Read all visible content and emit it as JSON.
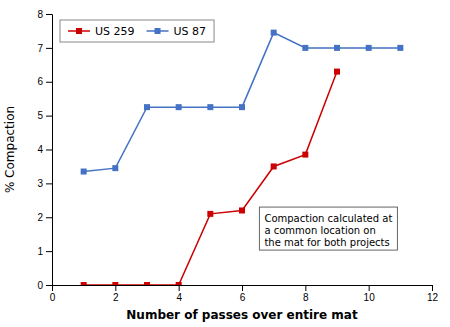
{
  "chart_data": {
    "type": "line",
    "xlabel": "Number of passes over entire mat",
    "ylabel": "% Compaction",
    "series": [
      {
        "name": "US 259",
        "color": "#cc0000",
        "marker": "square",
        "x": [
          1,
          2,
          3,
          4,
          5,
          6,
          7,
          8,
          9
        ],
        "values": [
          0.0,
          0.0,
          0.0,
          0.0,
          2.1,
          2.2,
          3.5,
          3.85,
          6.3
        ]
      },
      {
        "name": "US 87",
        "color": "#4472c4",
        "marker": "square",
        "x": [
          1,
          2,
          3,
          4,
          5,
          6,
          7,
          8,
          9,
          10,
          11
        ],
        "values": [
          3.35,
          3.45,
          5.25,
          5.25,
          5.25,
          5.25,
          7.45,
          7.0,
          7.0,
          7.0,
          7.0
        ]
      }
    ],
    "xlim": [
      0,
      12
    ],
    "ylim": [
      0,
      8
    ],
    "xticks": [
      0,
      2,
      4,
      6,
      8,
      10,
      12
    ],
    "yticks": [
      0,
      1,
      2,
      3,
      4,
      5,
      6,
      7,
      8
    ],
    "annotations": [
      {
        "text": "Compaction calculated at\na common location on\nthe mat for both projects",
        "x": 6.55,
        "y": 2.3
      }
    ],
    "legend": "upper left",
    "grid": false
  }
}
